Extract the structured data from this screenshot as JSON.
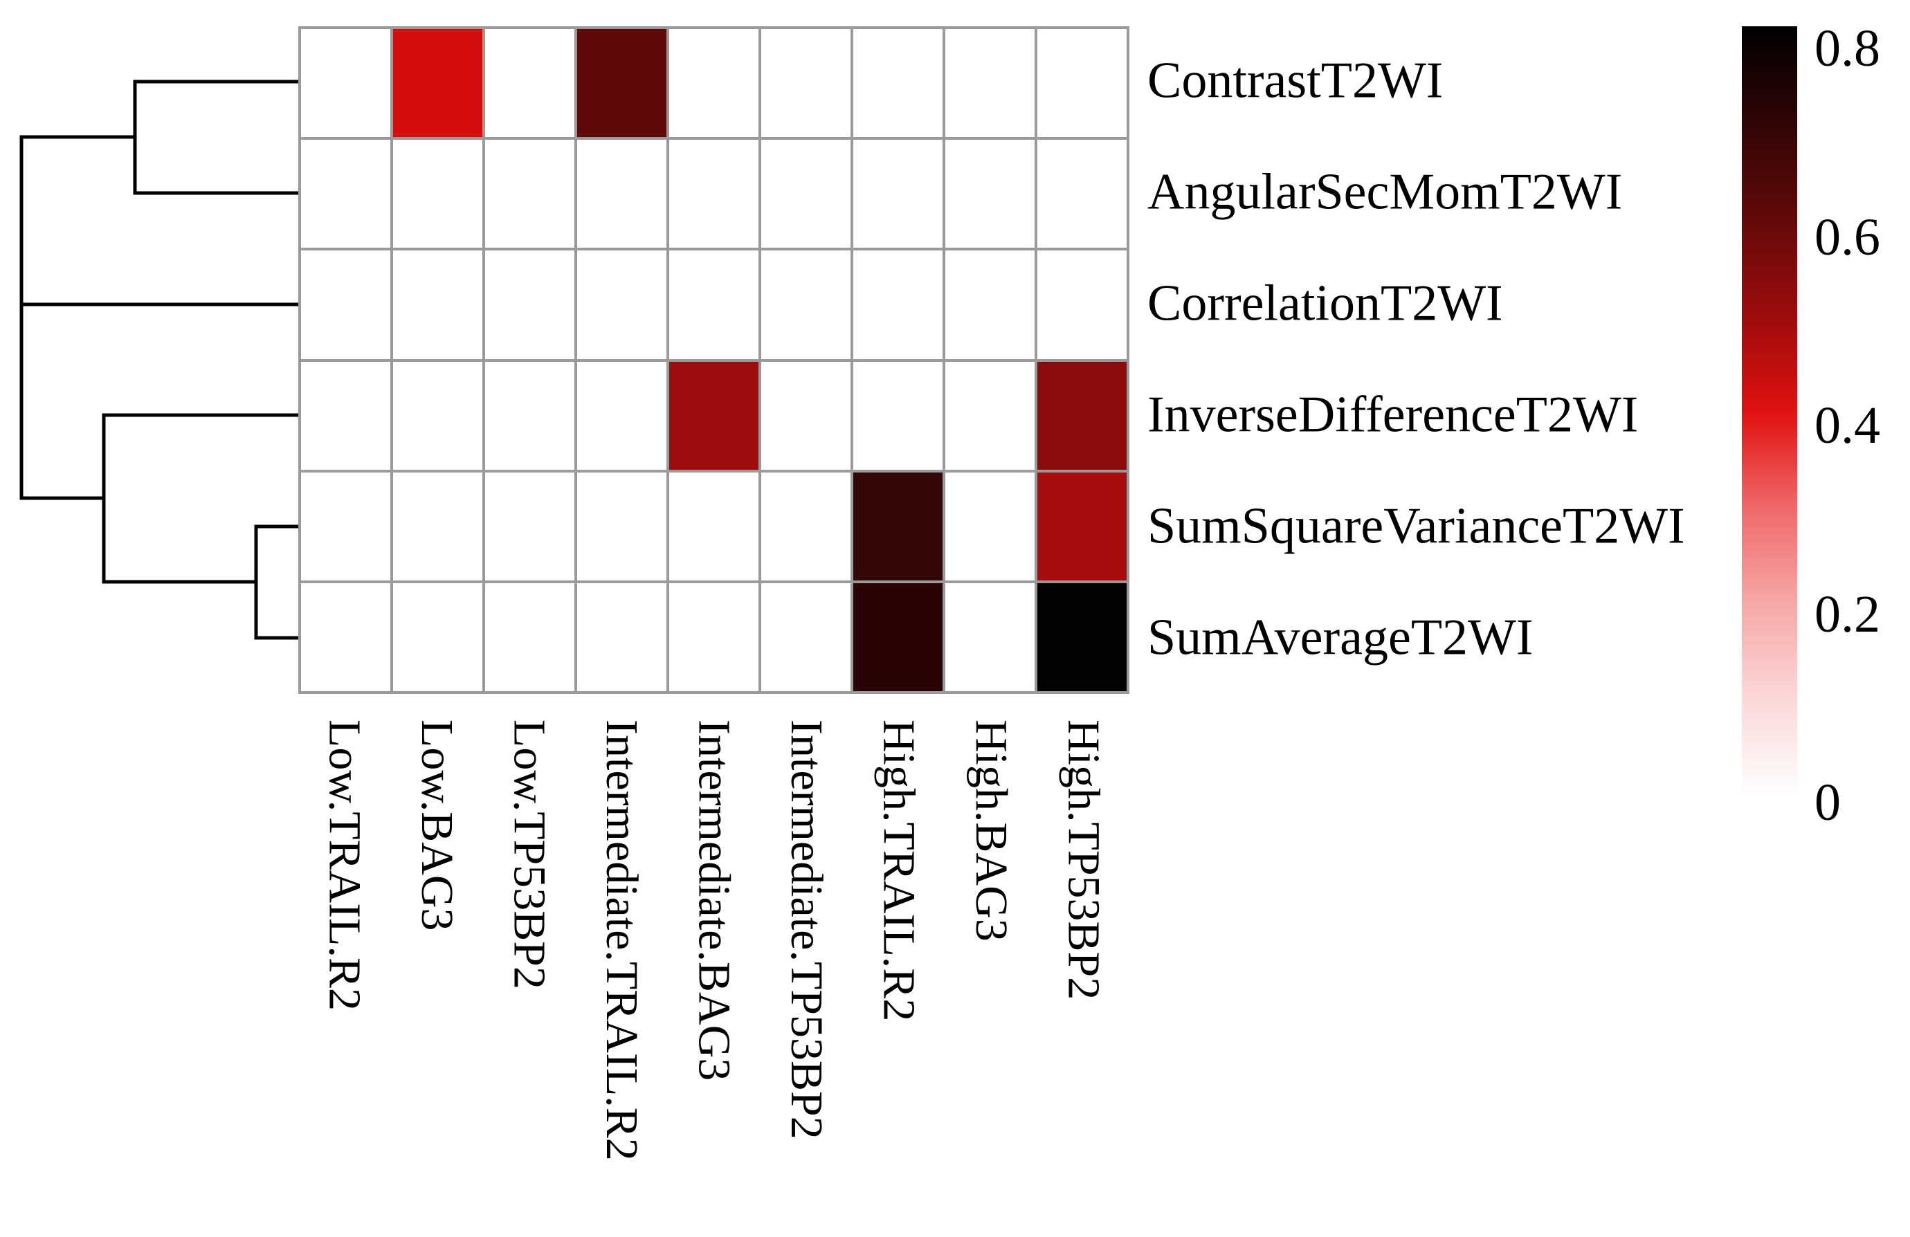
{
  "figure": {
    "background_color": "#FFFFFF",
    "grid_line_color": "#9A9A9A",
    "dendrogram_line_color": "#000000"
  },
  "chart_data": {
    "type": "heatmap",
    "title": "",
    "xlabel": "",
    "ylabel": "",
    "legend_position": "right-colorbar",
    "grid": "on",
    "columns": [
      "Low.TRAIL.R2",
      "Low.BAG3",
      "Low.TP53BP2",
      "Intermediate.TRAIL.R2",
      "Intermediate.BAG3",
      "Intermediate.TP53BP2",
      "High.TRAIL.R2",
      "High.BAG3",
      "High.TP53BP2"
    ],
    "rows": [
      "ContrastT2WI",
      "AngularSecMomT2WI",
      "CorrelationT2WI",
      "InverseDifferenceT2WI",
      "SumSquareVarianceT2WI",
      "SumAverageT2WI"
    ],
    "values": [
      [
        0,
        0.43,
        0,
        0.63,
        0,
        0,
        0,
        0,
        0
      ],
      [
        0,
        0,
        0,
        0,
        0,
        0,
        0,
        0,
        0
      ],
      [
        0,
        0,
        0,
        0,
        0,
        0,
        0,
        0,
        0
      ],
      [
        0,
        0,
        0,
        0,
        0.51,
        0,
        0,
        0,
        0.55
      ],
      [
        0,
        0,
        0,
        0,
        0,
        0,
        0.72,
        0,
        0.5
      ],
      [
        0,
        0,
        0,
        0,
        0,
        0,
        0.75,
        0,
        0.8
      ]
    ],
    "cell_colors": [
      [
        null,
        "#D40D0D",
        null,
        "#600909",
        null,
        null,
        null,
        null,
        null
      ],
      [
        null,
        null,
        null,
        null,
        null,
        null,
        null,
        null,
        null
      ],
      [
        null,
        null,
        null,
        null,
        null,
        null,
        null,
        null,
        null
      ],
      [
        null,
        null,
        null,
        null,
        "#9E0D0D",
        null,
        null,
        null,
        "#8C0C0C"
      ],
      [
        null,
        null,
        null,
        null,
        null,
        null,
        "#350606",
        null,
        "#A80D0D"
      ],
      [
        null,
        null,
        null,
        null,
        null,
        null,
        "#2A0404",
        null,
        "#020202"
      ]
    ],
    "empty_color": "#FFFFFF",
    "dendrogram": {
      "side": "left",
      "line_color": "#000000",
      "structure": "((ContrastT2WI, AngularSecMomT2WI), CorrelationT2WI) and ((SumSquareVarianceT2WI, SumAverageT2WI), InverseDifferenceT2WI) joined at root"
    },
    "colorbar": {
      "min": 0,
      "max": 0.8,
      "ticks": [
        {
          "label": "0.8",
          "value": 0.8
        },
        {
          "label": "0.6",
          "value": 0.6
        },
        {
          "label": "0.4",
          "value": 0.4
        },
        {
          "label": "0.2",
          "value": 0.2
        },
        {
          "label": "0",
          "value": 0.0
        }
      ],
      "stops": [
        {
          "value": 0.8,
          "color": "#000000"
        },
        {
          "value": 0.7,
          "color": "#300505"
        },
        {
          "value": 0.6,
          "color": "#620909"
        },
        {
          "value": 0.5,
          "color": "#9C0C0C"
        },
        {
          "value": 0.4,
          "color": "#E01010"
        },
        {
          "value": 0.3,
          "color": "#F06868"
        },
        {
          "value": 0.2,
          "color": "#F7A8A8"
        },
        {
          "value": 0.1,
          "color": "#FCD8D8"
        },
        {
          "value": 0.0,
          "color": "#FFFFFF"
        }
      ]
    }
  }
}
